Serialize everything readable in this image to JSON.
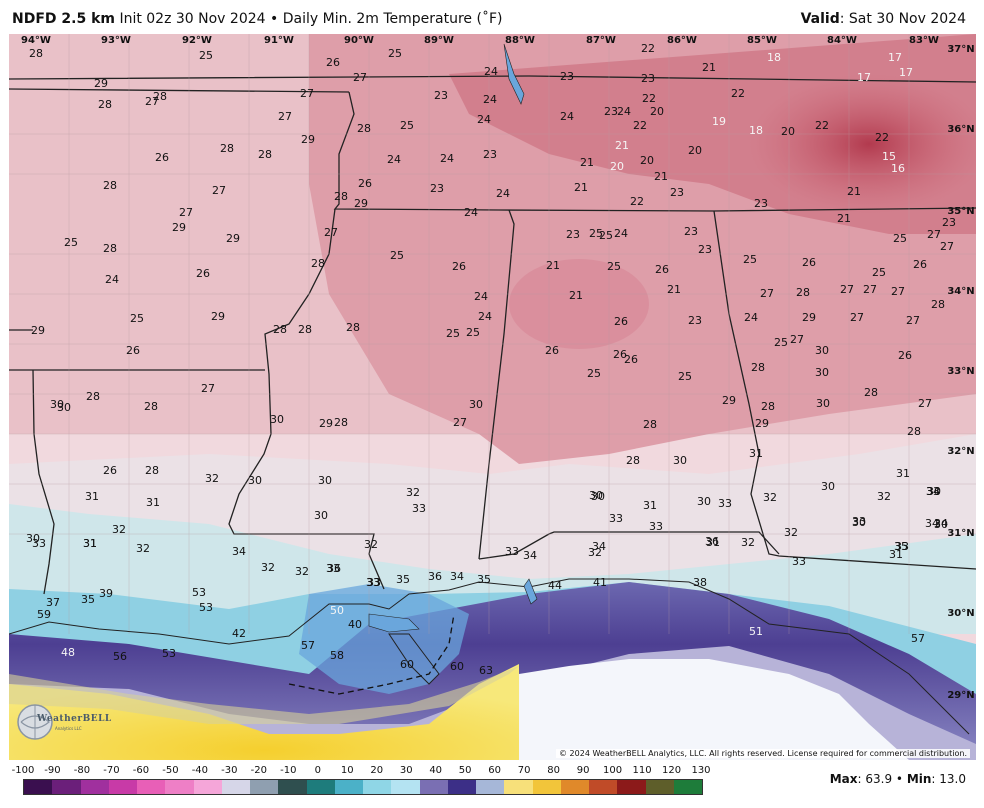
{
  "header": {
    "model": "NDFD 2.5 km",
    "init": "Init 02z 30 Nov 2024",
    "separator": "•",
    "product": "Daily Min. 2m Temperature (˚F)",
    "valid_label": "Valid",
    "valid_value": ": Sat 30 Nov 2024"
  },
  "longitudes": [
    "94°W",
    "93°W",
    "92°W",
    "91°W",
    "90°W",
    "89°W",
    "88°W",
    "87°W",
    "86°W",
    "85°W",
    "84°W",
    "83°W"
  ],
  "latitudes": [
    "37°N",
    "36°N",
    "35°N",
    "34°N",
    "33°N",
    "32°N",
    "31°N",
    "30°N",
    "29°N"
  ],
  "temperature_labels": [
    {
      "t": "28",
      "c": "#111"
    },
    {
      "t": "25",
      "c": "#111"
    },
    {
      "t": "26",
      "c": "#111"
    },
    {
      "t": "25",
      "c": "#111"
    },
    {
      "t": "27",
      "c": "#111"
    },
    {
      "t": "24",
      "c": "#111"
    },
    {
      "t": "23",
      "c": "#111"
    },
    {
      "t": "22",
      "c": "#111"
    },
    {
      "t": "23",
      "c": "#111"
    },
    {
      "t": "21",
      "c": "#111"
    },
    {
      "t": "18",
      "c": "#f5f5f5"
    },
    {
      "t": "17",
      "c": "#f5f5f5"
    },
    {
      "t": "17",
      "c": "#f5f5f5"
    },
    {
      "t": "17",
      "c": "#f5f5f5"
    },
    {
      "t": "29",
      "c": "#111"
    },
    {
      "t": "28",
      "c": "#111"
    },
    {
      "t": "27",
      "c": "#111"
    },
    {
      "t": "28",
      "c": "#111"
    },
    {
      "t": "27",
      "c": "#111"
    },
    {
      "t": "23",
      "c": "#111"
    },
    {
      "t": "24",
      "c": "#111"
    },
    {
      "t": "22",
      "c": "#111"
    },
    {
      "t": "22",
      "c": "#111"
    },
    {
      "t": "20",
      "c": "#111"
    },
    {
      "t": "22",
      "c": "#111"
    },
    {
      "t": "27",
      "c": "#111"
    },
    {
      "t": "25",
      "c": "#111"
    },
    {
      "t": "24",
      "c": "#111"
    },
    {
      "t": "24",
      "c": "#111"
    },
    {
      "t": "23",
      "c": "#111"
    },
    {
      "t": "24",
      "c": "#111"
    },
    {
      "t": "22",
      "c": "#111"
    },
    {
      "t": "19",
      "c": "#f5f5f5"
    },
    {
      "t": "18",
      "c": "#f5f5f5"
    },
    {
      "t": "20",
      "c": "#111"
    },
    {
      "t": "22",
      "c": "#111"
    },
    {
      "t": "21",
      "c": "#f5f5f5"
    },
    {
      "t": "28",
      "c": "#111"
    },
    {
      "t": "29",
      "c": "#111"
    },
    {
      "t": "21",
      "c": "#111"
    },
    {
      "t": "20",
      "c": "#111"
    },
    {
      "t": "20",
      "c": "#f5f5f5"
    },
    {
      "t": "20",
      "c": "#111"
    },
    {
      "t": "15",
      "c": "#f5f5f5"
    },
    {
      "t": "16",
      "c": "#f5f5f5"
    },
    {
      "t": "26",
      "c": "#111"
    },
    {
      "t": "28",
      "c": "#111"
    },
    {
      "t": "28",
      "c": "#111"
    },
    {
      "t": "24",
      "c": "#111"
    },
    {
      "t": "24",
      "c": "#111"
    },
    {
      "t": "23",
      "c": "#111"
    },
    {
      "t": "21",
      "c": "#111"
    },
    {
      "t": "21",
      "c": "#111"
    },
    {
      "t": "23",
      "c": "#111"
    },
    {
      "t": "28",
      "c": "#111"
    },
    {
      "t": "27",
      "c": "#111"
    },
    {
      "t": "26",
      "c": "#111"
    },
    {
      "t": "28",
      "c": "#111"
    },
    {
      "t": "29",
      "c": "#111"
    },
    {
      "t": "23",
      "c": "#111"
    },
    {
      "t": "24",
      "c": "#111"
    },
    {
      "t": "22",
      "c": "#111"
    },
    {
      "t": "23",
      "c": "#111"
    },
    {
      "t": "21",
      "c": "#111"
    },
    {
      "t": "27",
      "c": "#111"
    },
    {
      "t": "29",
      "c": "#111"
    },
    {
      "t": "27",
      "c": "#111"
    },
    {
      "t": "24",
      "c": "#111"
    },
    {
      "t": "23",
      "c": "#111"
    },
    {
      "t": "25",
      "c": "#111"
    },
    {
      "t": "23",
      "c": "#111"
    },
    {
      "t": "24",
      "c": "#111"
    },
    {
      "t": "25",
      "c": "#111"
    },
    {
      "t": "21",
      "c": "#111"
    },
    {
      "t": "23",
      "c": "#111"
    },
    {
      "t": "25",
      "c": "#111"
    },
    {
      "t": "27",
      "c": "#111"
    },
    {
      "t": "27",
      "c": "#111"
    },
    {
      "t": "26",
      "c": "#111"
    },
    {
      "t": "25",
      "c": "#111"
    },
    {
      "t": "28",
      "c": "#111"
    },
    {
      "t": "29",
      "c": "#111"
    },
    {
      "t": "28",
      "c": "#111"
    },
    {
      "t": "25",
      "c": "#111"
    },
    {
      "t": "26",
      "c": "#111"
    },
    {
      "t": "21",
      "c": "#111"
    },
    {
      "t": "25",
      "c": "#111"
    },
    {
      "t": "26",
      "c": "#111"
    },
    {
      "t": "23",
      "c": "#111"
    },
    {
      "t": "25",
      "c": "#111"
    },
    {
      "t": "26",
      "c": "#111"
    },
    {
      "t": "24",
      "c": "#111"
    },
    {
      "t": "26",
      "c": "#111"
    },
    {
      "t": "24",
      "c": "#111"
    },
    {
      "t": "21",
      "c": "#111"
    },
    {
      "t": "21",
      "c": "#111"
    },
    {
      "t": "25",
      "c": "#111"
    },
    {
      "t": "28",
      "c": "#111"
    },
    {
      "t": "27",
      "c": "#111"
    },
    {
      "t": "27",
      "c": "#111"
    },
    {
      "t": "27",
      "c": "#111"
    },
    {
      "t": "27",
      "c": "#111"
    },
    {
      "t": "28",
      "c": "#111"
    },
    {
      "t": "25",
      "c": "#111"
    },
    {
      "t": "29",
      "c": "#111"
    },
    {
      "t": "24",
      "c": "#111"
    },
    {
      "t": "26",
      "c": "#111"
    },
    {
      "t": "23",
      "c": "#111"
    },
    {
      "t": "24",
      "c": "#111"
    },
    {
      "t": "29",
      "c": "#111"
    },
    {
      "t": "27",
      "c": "#111"
    },
    {
      "t": "27",
      "c": "#111"
    },
    {
      "t": "29",
      "c": "#111"
    },
    {
      "t": "28",
      "c": "#111"
    },
    {
      "t": "28",
      "c": "#111"
    },
    {
      "t": "28",
      "c": "#111"
    },
    {
      "t": "25",
      "c": "#111"
    },
    {
      "t": "25",
      "c": "#111"
    },
    {
      "t": "26",
      "c": "#111"
    },
    {
      "t": "26",
      "c": "#111"
    },
    {
      "t": "25",
      "c": "#111"
    },
    {
      "t": "25",
      "c": "#111"
    },
    {
      "t": "27",
      "c": "#111"
    },
    {
      "t": "30",
      "c": "#111"
    },
    {
      "t": "26",
      "c": "#111"
    },
    {
      "t": "26",
      "c": "#111"
    },
    {
      "t": "25",
      "c": "#111"
    },
    {
      "t": "26",
      "c": "#111"
    },
    {
      "t": "28",
      "c": "#111"
    },
    {
      "t": "30",
      "c": "#111"
    },
    {
      "t": "30",
      "c": "#111"
    },
    {
      "t": "30",
      "c": "#111"
    },
    {
      "t": "28",
      "c": "#111"
    },
    {
      "t": "28",
      "c": "#111"
    },
    {
      "t": "27",
      "c": "#111"
    },
    {
      "t": "29",
      "c": "#111"
    },
    {
      "t": "30",
      "c": "#111"
    },
    {
      "t": "29",
      "c": "#111"
    },
    {
      "t": "28",
      "c": "#111"
    },
    {
      "t": "30",
      "c": "#111"
    },
    {
      "t": "28",
      "c": "#111"
    },
    {
      "t": "27",
      "c": "#111"
    },
    {
      "t": "30",
      "c": "#111"
    },
    {
      "t": "28",
      "c": "#111"
    },
    {
      "t": "27",
      "c": "#111"
    },
    {
      "t": "28",
      "c": "#111"
    },
    {
      "t": "30",
      "c": "#111"
    },
    {
      "t": "28",
      "c": "#111"
    },
    {
      "t": "29",
      "c": "#111"
    },
    {
      "t": "28",
      "c": "#111"
    },
    {
      "t": "26",
      "c": "#111"
    },
    {
      "t": "28",
      "c": "#111"
    },
    {
      "t": "32",
      "c": "#111"
    },
    {
      "t": "31",
      "c": "#111"
    },
    {
      "t": "31",
      "c": "#111"
    },
    {
      "t": "30",
      "c": "#111"
    },
    {
      "t": "30",
      "c": "#111"
    },
    {
      "t": "32",
      "c": "#111"
    },
    {
      "t": "33",
      "c": "#111"
    },
    {
      "t": "30",
      "c": "#111"
    },
    {
      "t": "30",
      "c": "#111"
    },
    {
      "t": "31",
      "c": "#111"
    },
    {
      "t": "31",
      "c": "#111"
    },
    {
      "t": "30",
      "c": "#111"
    },
    {
      "t": "32",
      "c": "#111"
    },
    {
      "t": "30",
      "c": "#111"
    },
    {
      "t": "31",
      "c": "#111"
    },
    {
      "t": "30",
      "c": "#111"
    },
    {
      "t": "33",
      "c": "#111"
    },
    {
      "t": "32",
      "c": "#111"
    },
    {
      "t": "30",
      "c": "#111"
    },
    {
      "t": "30",
      "c": "#111"
    },
    {
      "t": "31",
      "c": "#111"
    },
    {
      "t": "32",
      "c": "#111"
    },
    {
      "t": "32",
      "c": "#111"
    },
    {
      "t": "34",
      "c": "#111"
    },
    {
      "t": "33",
      "c": "#111"
    },
    {
      "t": "31",
      "c": "#111"
    },
    {
      "t": "32",
      "c": "#111"
    },
    {
      "t": "32",
      "c": "#111"
    },
    {
      "t": "30",
      "c": "#111"
    },
    {
      "t": "32",
      "c": "#111"
    },
    {
      "t": "34",
      "c": "#111"
    },
    {
      "t": "33",
      "c": "#111"
    },
    {
      "t": "30",
      "c": "#111"
    },
    {
      "t": "34",
      "c": "#111"
    },
    {
      "t": "31",
      "c": "#111"
    },
    {
      "t": "33",
      "c": "#111"
    },
    {
      "t": "32",
      "c": "#111"
    },
    {
      "t": "32",
      "c": "#111"
    },
    {
      "t": "33",
      "c": "#111"
    },
    {
      "t": "32",
      "c": "#111"
    },
    {
      "t": "33",
      "c": "#111"
    },
    {
      "t": "33",
      "c": "#111"
    },
    {
      "t": "34",
      "c": "#111"
    },
    {
      "t": "33",
      "c": "#111"
    },
    {
      "t": "31",
      "c": "#111"
    },
    {
      "t": "34",
      "c": "#111"
    },
    {
      "t": "35",
      "c": "#111"
    },
    {
      "t": "36",
      "c": "#111"
    },
    {
      "t": "33",
      "c": "#111"
    },
    {
      "t": "36",
      "c": "#111"
    },
    {
      "t": "33",
      "c": "#111"
    },
    {
      "t": "33",
      "c": "#111"
    },
    {
      "t": "33",
      "c": "#111"
    },
    {
      "t": "35",
      "c": "#111"
    },
    {
      "t": "36",
      "c": "#111"
    },
    {
      "t": "34",
      "c": "#111"
    },
    {
      "t": "35",
      "c": "#111"
    },
    {
      "t": "34",
      "c": "#111"
    },
    {
      "t": "44",
      "c": "#111"
    },
    {
      "t": "41",
      "c": "#111"
    },
    {
      "t": "38",
      "c": "#111"
    },
    {
      "t": "37",
      "c": "#111"
    },
    {
      "t": "35",
      "c": "#111"
    },
    {
      "t": "39",
      "c": "#111"
    },
    {
      "t": "53",
      "c": "#111"
    },
    {
      "t": "53",
      "c": "#111"
    },
    {
      "t": "50",
      "c": "#f5f5f5"
    },
    {
      "t": "40",
      "c": "#111"
    },
    {
      "t": "42",
      "c": "#111"
    },
    {
      "t": "51",
      "c": "#f5f5f5"
    },
    {
      "t": "57",
      "c": "#111"
    },
    {
      "t": "59",
      "c": "#111"
    },
    {
      "t": "48",
      "c": "#f5f5f5"
    },
    {
      "t": "56",
      "c": "#111"
    },
    {
      "t": "53",
      "c": "#111"
    },
    {
      "t": "57",
      "c": "#111"
    },
    {
      "t": "58",
      "c": "#111"
    },
    {
      "t": "60",
      "c": "#111"
    },
    {
      "t": "60",
      "c": "#111"
    },
    {
      "t": "63",
      "c": "#111"
    }
  ],
  "copyright": "© 2024 WeatherBELL Analytics, LLC. All rights reserved. License required for commercial distribution.",
  "logo": {
    "name": "WeatherBELL",
    "sub": "Analytics LLC"
  },
  "legend": {
    "ticks": [
      "-100",
      "-90",
      "-80",
      "-70",
      "-60",
      "-50",
      "-40",
      "-30",
      "-20",
      "-10",
      "0",
      "10",
      "20",
      "30",
      "40",
      "50",
      "60",
      "70",
      "80",
      "90",
      "100",
      "110",
      "120",
      "130"
    ],
    "colors": [
      "#3a0f4f",
      "#6b1f7a",
      "#a0309e",
      "#c83aa7",
      "#e85fb7",
      "#ee7fc6",
      "#f5a6d9",
      "#d6d6e8",
      "#8f9fb0",
      "#2f4f4f",
      "#1e7c7c",
      "#4bb1c8",
      "#8fd6e6",
      "#b4e3f2",
      "#7a6fb3",
      "#3c2f87",
      "#a6b7d8",
      "#f7e07a",
      "#f2c53a",
      "#e0892a",
      "#c04b28",
      "#8c1a1a",
      "#5e5e2a",
      "#1e7c3a"
    ],
    "max_label": "Max",
    "max_value": ": 63.9",
    "sep": "•",
    "min_label": "Min",
    "min_value": ": 13.0"
  }
}
